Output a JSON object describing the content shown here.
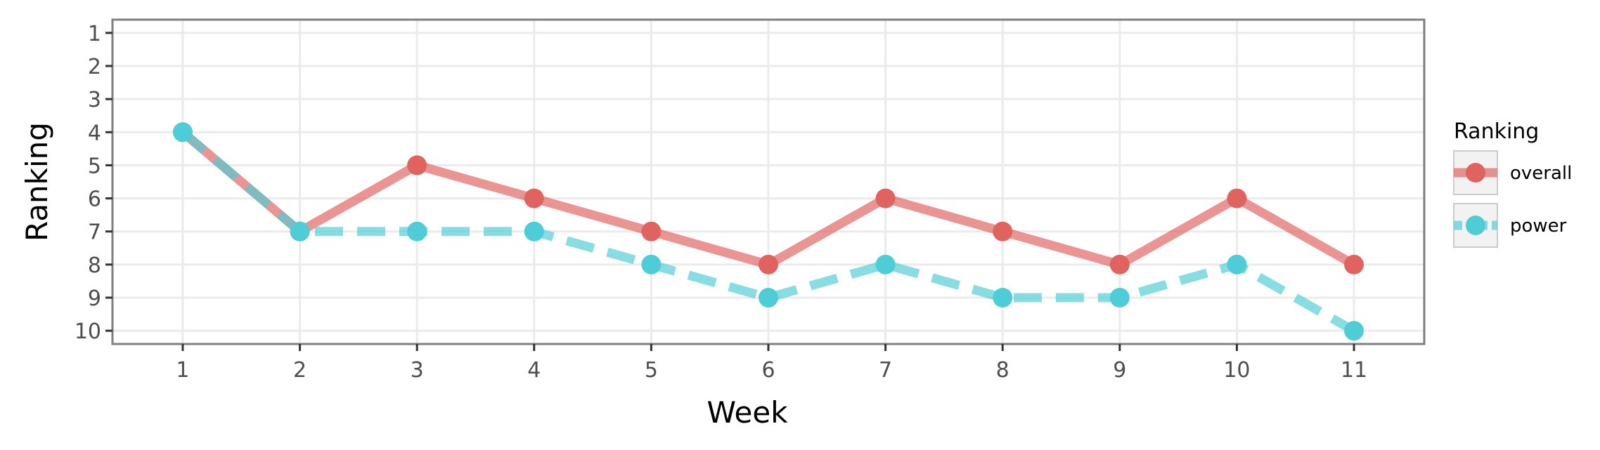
{
  "chart_data": {
    "type": "line",
    "xlabel": "Week",
    "ylabel": "Ranking",
    "x": [
      1,
      2,
      3,
      4,
      5,
      6,
      7,
      8,
      9,
      10,
      11
    ],
    "x_ticks": [
      "1",
      "2",
      "3",
      "4",
      "5",
      "6",
      "7",
      "8",
      "9",
      "10",
      "11"
    ],
    "y_ticks": [
      "1",
      "2",
      "3",
      "4",
      "5",
      "6",
      "7",
      "8",
      "9",
      "10"
    ],
    "y_tick_values": [
      1,
      2,
      3,
      4,
      5,
      6,
      7,
      8,
      9,
      10
    ],
    "xlim": [
      0.4,
      11.6
    ],
    "ylim": [
      0.6,
      10.4
    ],
    "y_reversed": true,
    "grid": true,
    "legend": {
      "title": "Ranking",
      "placement": "right"
    },
    "series": [
      {
        "name": "overall",
        "values": [
          4,
          7,
          5,
          6,
          7,
          8,
          6,
          7,
          8,
          6,
          8
        ],
        "color": "#e06360",
        "line_style": "solid"
      },
      {
        "name": "power",
        "values": [
          4,
          7,
          7,
          7,
          8,
          9,
          8,
          9,
          9,
          8,
          10
        ],
        "color": "#4fcdd6",
        "line_style": "dashed"
      }
    ]
  }
}
